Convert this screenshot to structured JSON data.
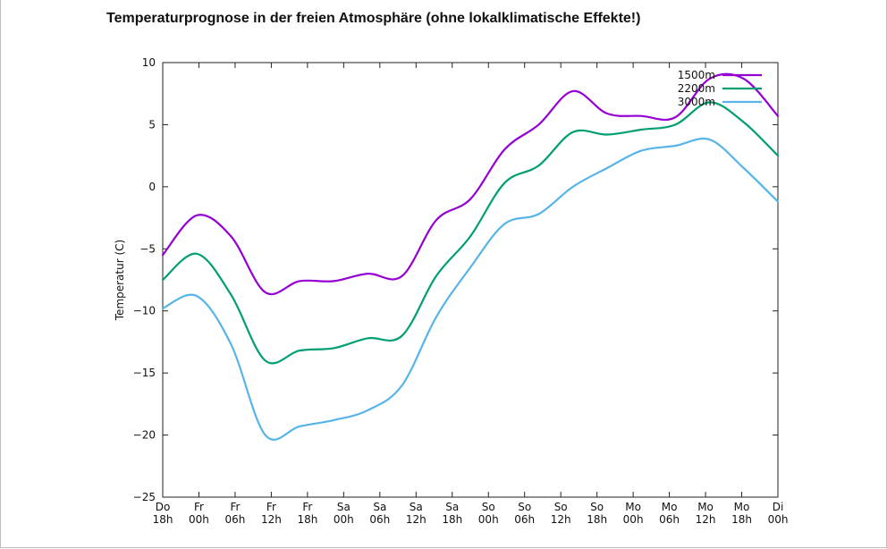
{
  "chart_data": {
    "type": "line",
    "title": "Temperaturprognose in der freien Atmosphäre (ohne lokalklimatische Effekte!)",
    "xlabel": "",
    "ylabel": "Temperatur (C)",
    "ylim": [
      -25,
      10
    ],
    "yticks": [
      10,
      5,
      0,
      -5,
      -10,
      -15,
      -20,
      -25
    ],
    "ytick_labels": [
      "10",
      "5",
      "0",
      "−5",
      "−10",
      "−15",
      "−20",
      "−25"
    ],
    "x_ticks": [
      {
        "day": "Do",
        "hour": "18h"
      },
      {
        "day": "Fr",
        "hour": "00h"
      },
      {
        "day": "Fr",
        "hour": "06h"
      },
      {
        "day": "Fr",
        "hour": "12h"
      },
      {
        "day": "Fr",
        "hour": "18h"
      },
      {
        "day": "Sa",
        "hour": "00h"
      },
      {
        "day": "Sa",
        "hour": "06h"
      },
      {
        "day": "Sa",
        "hour": "12h"
      },
      {
        "day": "Sa",
        "hour": "18h"
      },
      {
        "day": "So",
        "hour": "00h"
      },
      {
        "day": "So",
        "hour": "06h"
      },
      {
        "day": "So",
        "hour": "12h"
      },
      {
        "day": "So",
        "hour": "18h"
      },
      {
        "day": "Mo",
        "hour": "00h"
      },
      {
        "day": "Mo",
        "hour": "06h"
      },
      {
        "day": "Mo",
        "hour": "12h"
      },
      {
        "day": "Mo",
        "hour": "18h"
      },
      {
        "day": "Di",
        "hour": "00h"
      }
    ],
    "x_hours": [
      0,
      3,
      6,
      9,
      12,
      15,
      18,
      21,
      24,
      27,
      30,
      33,
      36,
      39,
      42,
      45,
      48,
      51,
      54,
      57,
      60,
      63,
      66,
      69,
      72,
      75,
      78,
      81,
      84,
      87,
      90,
      93,
      96,
      99,
      102
    ],
    "legend_position": "top-right",
    "series": [
      {
        "name": "1500m",
        "color": "#9400d3",
        "values": [
          -5.5,
          -2.3,
          -4.0,
          -8.5,
          -7.6,
          -7.6,
          -7.0,
          -7.2,
          -2.7,
          -1.0,
          3.0,
          5.0,
          7.7,
          5.9,
          5.7,
          5.6,
          8.7,
          8.7,
          5.7
        ]
      },
      {
        "name": "2200m",
        "color": "#009e73",
        "values": [
          -7.5,
          -5.4,
          -8.7,
          -14.0,
          -13.2,
          -13.0,
          -12.2,
          -12.0,
          -7.2,
          -4.0,
          0.3,
          1.7,
          4.4,
          4.2,
          4.6,
          5.0,
          6.8,
          5.2,
          2.5
        ]
      },
      {
        "name": "3000m",
        "color": "#56b4e9",
        "values": [
          -9.8,
          -8.8,
          -12.7,
          -20.0,
          -19.3,
          -18.8,
          -18.0,
          -16.0,
          -10.5,
          -6.5,
          -3.0,
          -2.2,
          0.0,
          1.5,
          2.9,
          3.3,
          3.8,
          1.5,
          -1.2
        ]
      }
    ]
  }
}
